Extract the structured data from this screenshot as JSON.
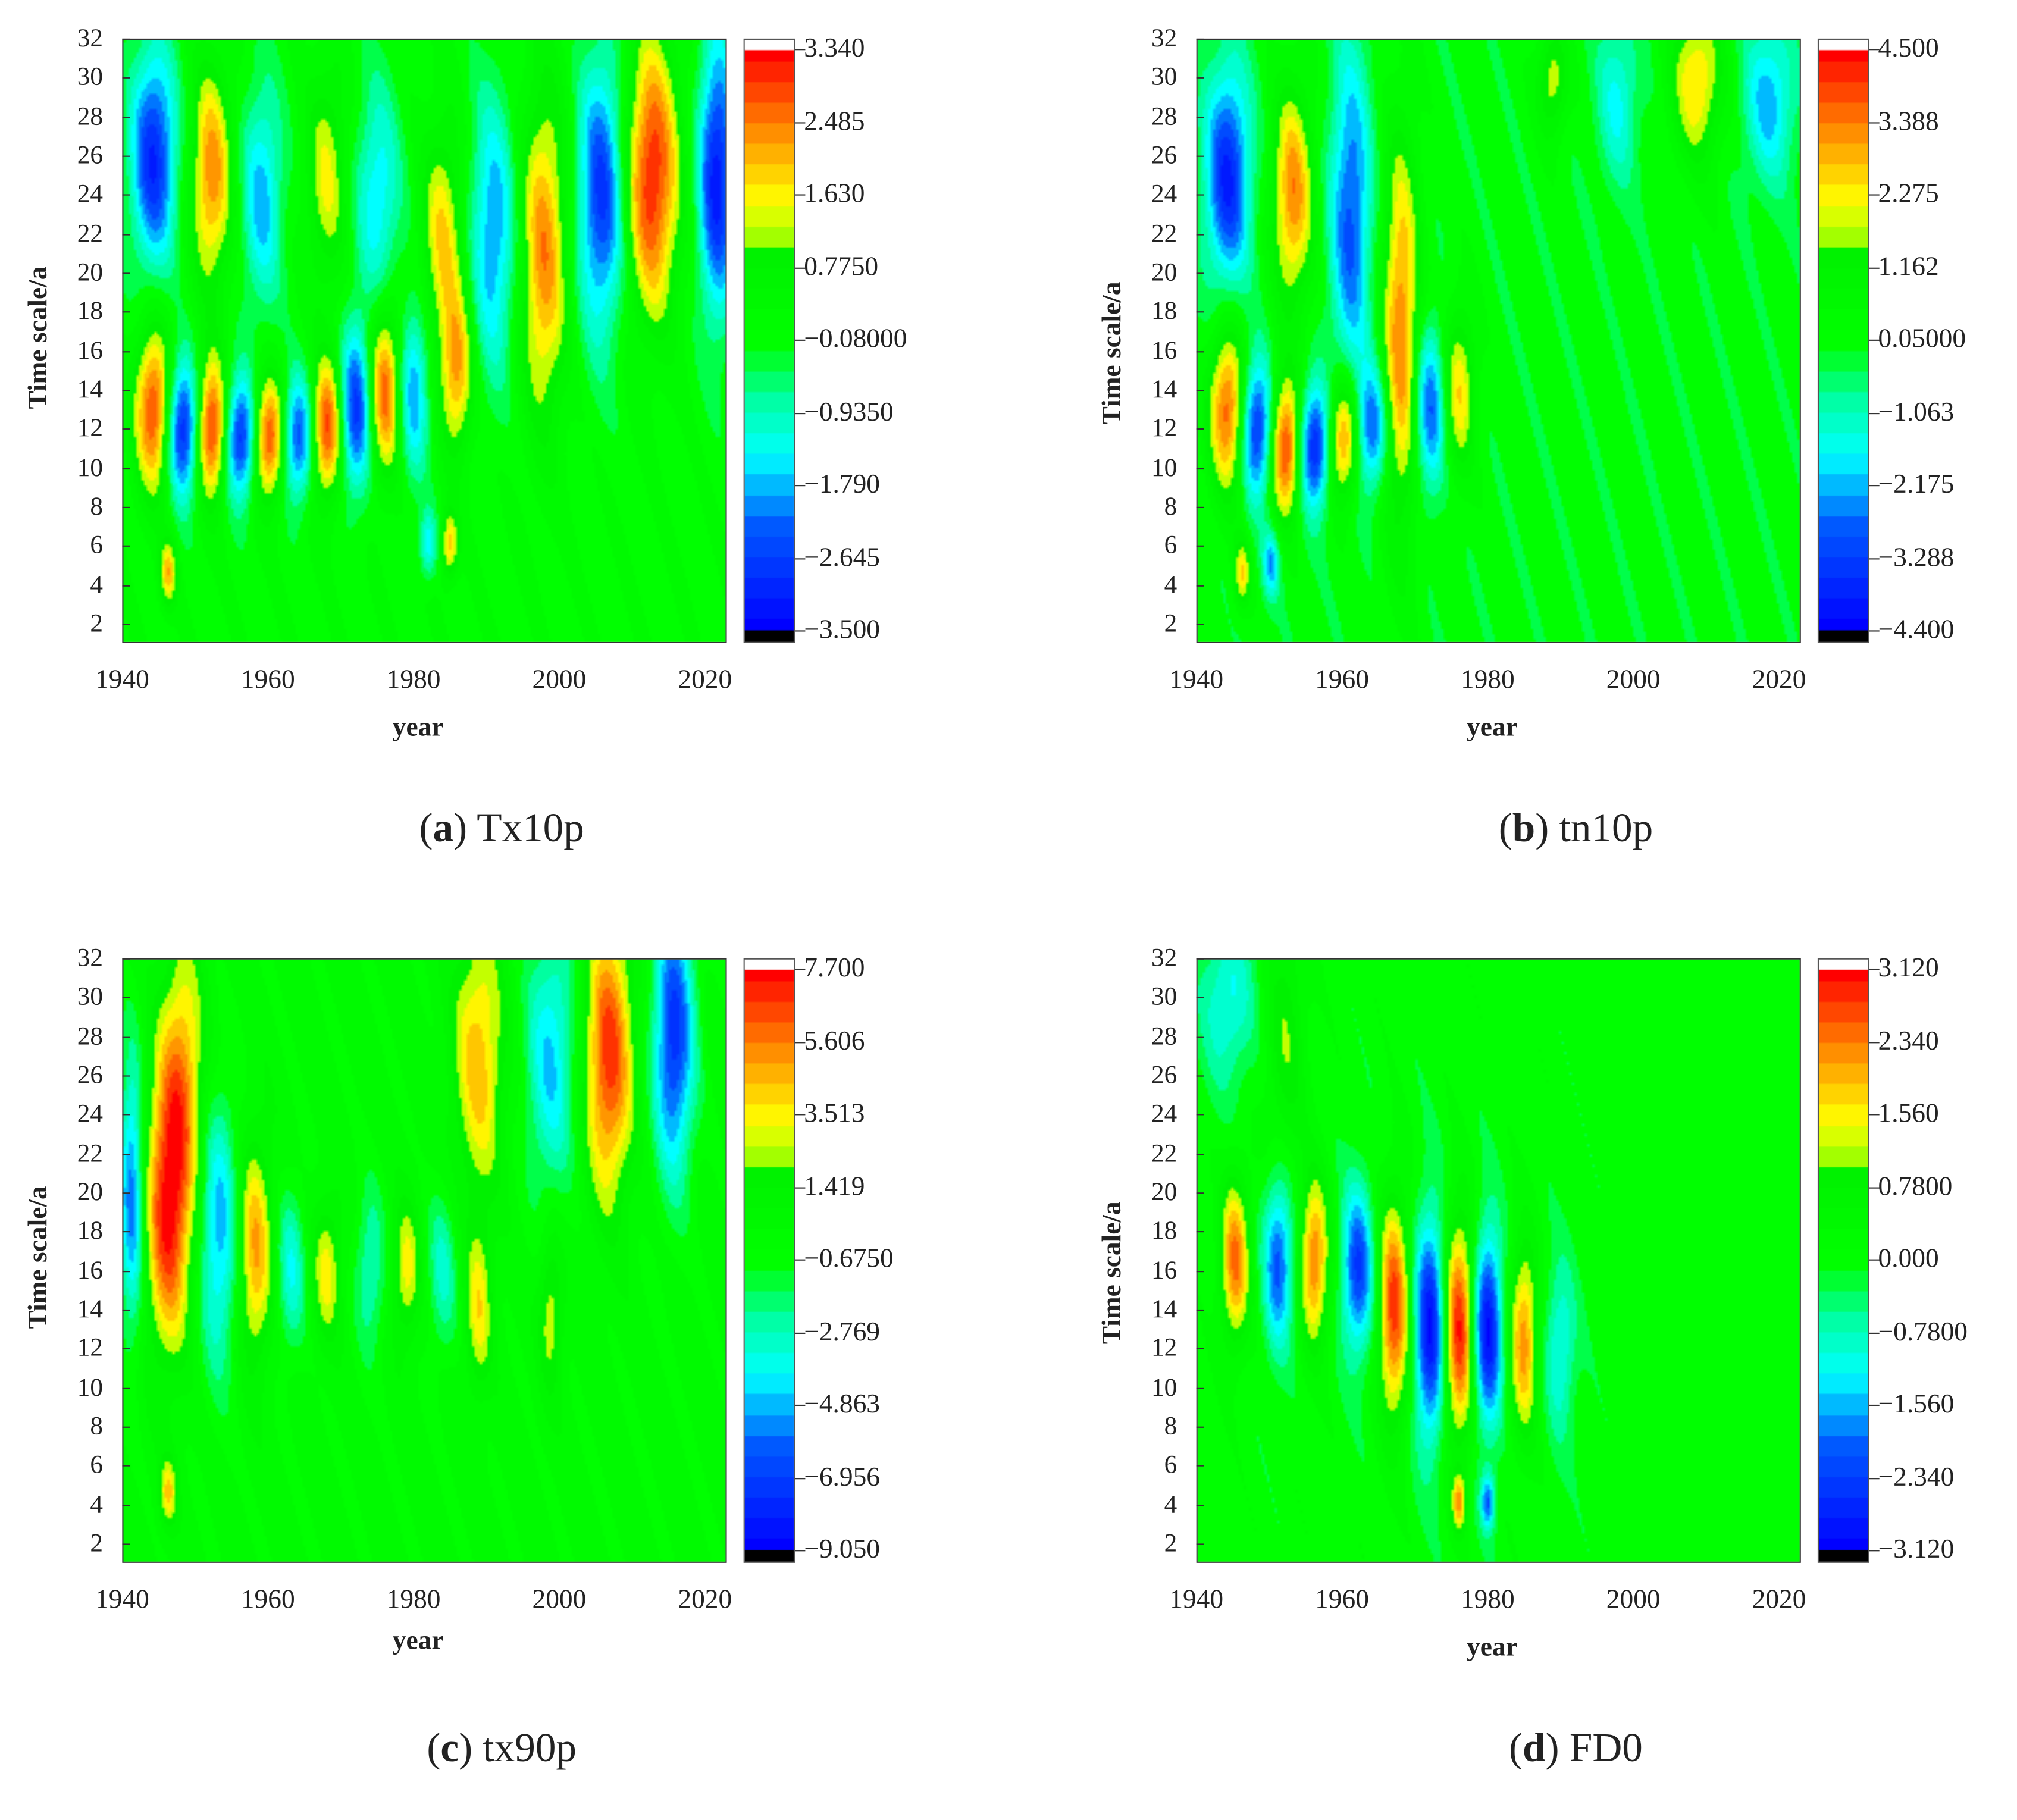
{
  "chart_data": [
    {
      "type": "heatmap",
      "panel_letter": "a",
      "title": "Tx10p",
      "xlabel": "year",
      "ylabel": "Time scale/a",
      "xlim": [
        1940,
        2023
      ],
      "ylim": [
        1,
        32
      ],
      "xticks": [
        "1940",
        "1960",
        "1980",
        "2000",
        "2020"
      ],
      "yticks": [
        "2",
        "4",
        "6",
        "8",
        "10",
        "12",
        "14",
        "16",
        "18",
        "20",
        "22",
        "24",
        "26",
        "28",
        "30",
        "32"
      ],
      "colorbar": {
        "min": -3.5,
        "max": 3.34,
        "labels": [
          "3.340",
          "2.485",
          "1.630",
          "0.7750",
          "−0.08000",
          "−0.9350",
          "−1.790",
          "−2.645",
          "−3.500"
        ]
      },
      "features": [
        [
          1944,
          26,
          -3.0,
          2.2,
          4
        ],
        [
          1944,
          13,
          3.0,
          1.8,
          3
        ],
        [
          1948,
          12,
          -3.2,
          1.6,
          2.5
        ],
        [
          1952,
          12,
          3.2,
          1.5,
          2.5
        ],
        [
          1952,
          25,
          2.4,
          2,
          4
        ],
        [
          1956,
          11.5,
          -3.0,
          1.5,
          2.2
        ],
        [
          1960,
          11.5,
          3.0,
          1.5,
          2.2
        ],
        [
          1964,
          11.5,
          -2.6,
          1.5,
          2.2
        ],
        [
          1968,
          12,
          3.0,
          1.5,
          2.5
        ],
        [
          1972,
          13,
          -2.8,
          1.6,
          3
        ],
        [
          1976,
          14,
          2.8,
          1.6,
          3
        ],
        [
          1980,
          14,
          -2.0,
          1.5,
          3
        ],
        [
          1986,
          15,
          2.2,
          1.6,
          3
        ],
        [
          1959,
          24,
          -1.8,
          2,
          4
        ],
        [
          1968,
          25,
          1.5,
          2,
          4
        ],
        [
          1975,
          24,
          -1.6,
          2.2,
          4
        ],
        [
          1984,
          22,
          1.8,
          2,
          4
        ],
        [
          1991,
          22,
          -2.0,
          2.3,
          5
        ],
        [
          1998,
          21,
          2.4,
          2.3,
          6
        ],
        [
          2006,
          24,
          -2.8,
          2.3,
          5
        ],
        [
          2013,
          25,
          3.2,
          2.6,
          5
        ],
        [
          2022,
          25,
          -3.2,
          1.8,
          5
        ],
        [
          1946,
          4.5,
          2.0,
          0.8,
          1.2
        ],
        [
          1985,
          6,
          2.0,
          0.8,
          1.2
        ],
        [
          1982,
          6,
          -1.5,
          0.8,
          1.2
        ]
      ]
    },
    {
      "type": "heatmap",
      "panel_letter": "b",
      "title": "tn10p",
      "xlabel": "year",
      "ylabel": "Time scale/a",
      "xlim": [
        1940,
        2023
      ],
      "ylim": [
        1,
        32
      ],
      "xticks": [
        "1940",
        "1960",
        "1980",
        "2000",
        "2020"
      ],
      "yticks": [
        "2",
        "4",
        "6",
        "8",
        "10",
        "12",
        "14",
        "16",
        "18",
        "20",
        "22",
        "24",
        "26",
        "28",
        "30",
        "32"
      ],
      "colorbar": {
        "min": -4.4,
        "max": 4.5,
        "labels": [
          "4.500",
          "3.388",
          "2.275",
          "1.162",
          "0.05000",
          "−1.063",
          "−2.175",
          "−3.288",
          "−4.400"
        ]
      },
      "features": [
        [
          1944,
          25,
          -3.8,
          2.2,
          4
        ],
        [
          1944,
          13,
          3.8,
          1.8,
          3
        ],
        [
          1948,
          12,
          -3.8,
          1.6,
          2.5
        ],
        [
          1952,
          11,
          4.2,
          1.5,
          2.5
        ],
        [
          1953,
          24,
          3.3,
          2,
          4
        ],
        [
          1956,
          11,
          -4.0,
          1.5,
          2.2
        ],
        [
          1960,
          11.5,
          3.6,
          1.5,
          2.2
        ],
        [
          1961,
          23,
          -3.0,
          2,
          6
        ],
        [
          1964,
          12,
          -3.0,
          1.5,
          2.2
        ],
        [
          1968,
          17,
          3.4,
          1.8,
          7
        ],
        [
          1972,
          13,
          -3.0,
          1.6,
          3
        ],
        [
          1976,
          14,
          2.5,
          1.6,
          3
        ],
        [
          1989,
          30,
          2.0,
          1.5,
          2
        ],
        [
          1998,
          29,
          -1.6,
          2,
          3
        ],
        [
          2009,
          30,
          2.6,
          2.5,
          3
        ],
        [
          2019,
          29,
          -2.2,
          2.5,
          3
        ],
        [
          1946,
          4.5,
          2.4,
          0.8,
          1.2
        ],
        [
          1950,
          5,
          -2.4,
          0.8,
          1.2
        ]
      ]
    },
    {
      "type": "heatmap",
      "panel_letter": "c",
      "title": "tx90p",
      "xlabel": "year",
      "ylabel": "Time scale/a",
      "xlim": [
        1940,
        2023
      ],
      "ylim": [
        1,
        32
      ],
      "xticks": [
        "1940",
        "1960",
        "1980",
        "2000",
        "2020"
      ],
      "yticks": [
        "2",
        "4",
        "6",
        "8",
        "10",
        "12",
        "14",
        "16",
        "18",
        "20",
        "22",
        "24",
        "26",
        "28",
        "30",
        "32"
      ],
      "colorbar": {
        "min": -9.05,
        "max": 7.7,
        "labels": [
          "7.700",
          "5.606",
          "3.513",
          "1.419",
          "−0.6750",
          "−2.769",
          "−4.863",
          "−6.956",
          "−9.050"
        ]
      },
      "features": [
        [
          1946,
          19,
          7.0,
          2.2,
          5
        ],
        [
          1948,
          26,
          4.5,
          2.2,
          5
        ],
        [
          1941,
          20,
          -6.0,
          1.2,
          5
        ],
        [
          1953,
          18,
          -5.0,
          2,
          5
        ],
        [
          1958,
          17,
          5.0,
          1.7,
          4
        ],
        [
          1963,
          16,
          -3.5,
          1.5,
          3
        ],
        [
          1968,
          16,
          3.5,
          1.4,
          2.5
        ],
        [
          1974,
          16,
          -3,
          1.5,
          3
        ],
        [
          1979,
          16,
          3.5,
          1.3,
          2.5
        ],
        [
          1984,
          16,
          -3,
          1.5,
          3
        ],
        [
          1989,
          14,
          3.5,
          1.3,
          3
        ],
        [
          1989,
          27,
          4.5,
          2.5,
          5
        ],
        [
          1999,
          27,
          -4.5,
          2.5,
          5
        ],
        [
          2007,
          27,
          7.0,
          2.3,
          5
        ],
        [
          2016,
          28,
          -7.5,
          2,
          5
        ],
        [
          1999,
          14,
          3.0,
          1.2,
          3
        ],
        [
          1946,
          4.5,
          4,
          0.8,
          1.2
        ]
      ]
    },
    {
      "type": "heatmap",
      "panel_letter": "d",
      "title": "FD0",
      "xlabel": "year",
      "ylabel": "Time scale/a",
      "xlim": [
        1940,
        2023
      ],
      "ylim": [
        1,
        32
      ],
      "xticks": [
        "1940",
        "1960",
        "1980",
        "2000",
        "2020"
      ],
      "yticks": [
        "2",
        "4",
        "6",
        "8",
        "10",
        "12",
        "14",
        "16",
        "18",
        "20",
        "22",
        "24",
        "26",
        "28",
        "30",
        "32"
      ],
      "colorbar": {
        "min": -3.12,
        "max": 3.12,
        "labels": [
          "3.120",
          "2.340",
          "1.560",
          "0.7800",
          "0.000",
          "−0.7800",
          "−1.560",
          "−2.340",
          "−3.120"
        ]
      },
      "features": [
        [
          1945,
          16.5,
          2.4,
          1.4,
          3
        ],
        [
          1951,
          16.5,
          -2.2,
          1.4,
          3
        ],
        [
          1956,
          16.5,
          2.4,
          1.4,
          3
        ],
        [
          1962,
          16,
          -2.4,
          1.5,
          3
        ],
        [
          1967,
          14,
          2.8,
          1.5,
          4
        ],
        [
          1972,
          13,
          -3.0,
          1.5,
          4
        ],
        [
          1976,
          13,
          3.0,
          1.5,
          4
        ],
        [
          1980,
          13,
          -3.0,
          1.4,
          3.5
        ],
        [
          1985,
          12.5,
          2.2,
          1.4,
          3.5
        ],
        [
          1990,
          12,
          -1.2,
          1.5,
          3
        ],
        [
          1944,
          30,
          -1.2,
          2.5,
          3
        ],
        [
          1952,
          28,
          1.0,
          2,
          5
        ],
        [
          1976,
          4,
          2,
          0.7,
          1
        ],
        [
          1980,
          4,
          -2,
          0.7,
          1
        ]
      ]
    }
  ],
  "captions": [
    {
      "letter": "a",
      "name": "Tx10p"
    },
    {
      "letter": "b",
      "name": "tn10p"
    },
    {
      "letter": "c",
      "name": "tx90p"
    },
    {
      "letter": "d",
      "name": "FD0"
    }
  ]
}
